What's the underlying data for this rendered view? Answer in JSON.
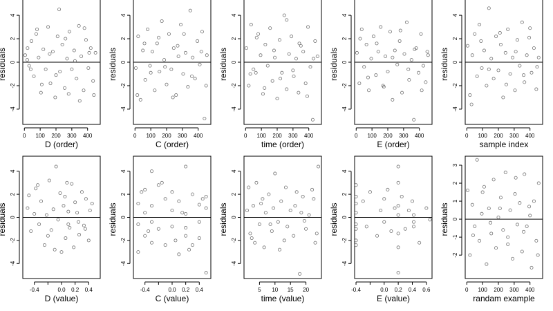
{
  "figure": {
    "panels": [
      {
        "id": "d-order",
        "xlabel": "D (order)",
        "ylabel": "residuals"
      },
      {
        "id": "c-order",
        "xlabel": "C (order)",
        "ylabel": "residuals"
      },
      {
        "id": "time-order",
        "xlabel": "time (order)",
        "ylabel": "residuals"
      },
      {
        "id": "e-order",
        "xlabel": "E (order)",
        "ylabel": "residuals"
      },
      {
        "id": "sample-index",
        "xlabel": "sample index",
        "ylabel": "residuals"
      },
      {
        "id": "d-value",
        "xlabel": "D (value)",
        "ylabel": "residuals"
      },
      {
        "id": "c-value",
        "xlabel": "C (value)",
        "ylabel": "residuals"
      },
      {
        "id": "time-value",
        "xlabel": "time (value)",
        "ylabel": "residuals"
      },
      {
        "id": "e-value",
        "xlabel": "E (value)",
        "ylabel": "residuals"
      },
      {
        "id": "random-example",
        "xlabel": "randam example",
        "ylabel": "residuals"
      }
    ]
  },
  "chart_data": [
    {
      "type": "scatter",
      "xlabel": "D (order)",
      "ylabel": "residuals",
      "xlim": [
        -10,
        480
      ],
      "ylim": [
        -5.3,
        5.3
      ],
      "xticks": [
        0,
        100,
        200,
        300,
        400
      ],
      "xtick_labels": [
        "0",
        "100",
        "200",
        "300",
        "400"
      ],
      "yticks": [
        -4,
        -2,
        0,
        2,
        4
      ],
      "ytick_labels": [
        "-4",
        "-2",
        "0",
        "2",
        "4"
      ],
      "hline": 0,
      "marker": "open-circle",
      "grid": false,
      "x": [
        5,
        18,
        30,
        45,
        60,
        75,
        90,
        105,
        120,
        135,
        150,
        165,
        180,
        195,
        210,
        225,
        240,
        255,
        270,
        285,
        300,
        315,
        330,
        345,
        360,
        375,
        390,
        405,
        420,
        435,
        450,
        20,
        40,
        80,
        110,
        160,
        200,
        220,
        260,
        280,
        320,
        350,
        380,
        410,
        440
      ],
      "y": [
        0.6,
        0.2,
        -0.3,
        1.8,
        -1.2,
        2.4,
        0.4,
        -2.6,
        1.1,
        -0.6,
        3.0,
        -1.8,
        0.9,
        -3.0,
        2.2,
        -0.8,
        1.5,
        -2.2,
        0.3,
        2.6,
        -0.6,
        1.0,
        -1.4,
        3.1,
        0.5,
        -2.4,
        1.9,
        -0.5,
        1.2,
        -1.6,
        0.8,
        1.2,
        -0.6,
        2.8,
        -1.9,
        0.7,
        -1.1,
        4.5,
        2.0,
        -2.7,
        0.1,
        -3.3,
        2.9,
        0.8,
        -2.8
      ]
    },
    {
      "type": "scatter",
      "xlabel": "C (order)",
      "ylabel": "residuals",
      "xlim": [
        -10,
        480
      ],
      "ylim": [
        -5.3,
        5.3
      ],
      "xticks": [
        0,
        100,
        200,
        300,
        400
      ],
      "xtick_labels": [
        "0",
        "100",
        "200",
        "300",
        "400"
      ],
      "yticks": [
        -4,
        -2,
        0,
        2,
        4
      ],
      "ytick_labels": [
        "-4",
        "-2",
        "0",
        "2",
        "4"
      ],
      "hline": 0,
      "marker": "open-circle",
      "grid": false,
      "x": [
        5,
        20,
        35,
        50,
        65,
        80,
        95,
        110,
        125,
        140,
        155,
        170,
        185,
        200,
        215,
        230,
        245,
        260,
        275,
        290,
        305,
        320,
        335,
        350,
        365,
        380,
        395,
        410,
        425,
        440,
        455,
        15,
        60,
        100,
        150,
        190,
        240,
        270,
        310,
        360,
        420,
        450
      ],
      "y": [
        -0.5,
        2.2,
        -3.2,
        1.0,
        -1.5,
        2.8,
        -0.3,
        0.9,
        -2.4,
        1.6,
        -0.8,
        3.5,
        0.2,
        -1.9,
        2.4,
        -0.6,
        1.2,
        -2.8,
        0.5,
        3.2,
        -1.0,
        0.8,
        -2.1,
        4.4,
        0.4,
        -1.4,
        1.8,
        -0.2,
        2.6,
        -4.8,
        0.6,
        -2.8,
        1.6,
        -0.9,
        2.1,
        -0.4,
        -3.0,
        1.4,
        2.4,
        -1.2,
        0.9,
        -2.0
      ]
    },
    {
      "type": "scatter",
      "xlabel": "time (order)",
      "ylabel": "residuals",
      "xlim": [
        -10,
        480
      ],
      "ylim": [
        -5.3,
        5.3
      ],
      "xticks": [
        0,
        100,
        200,
        300,
        400
      ],
      "xtick_labels": [
        "0",
        "100",
        "200",
        "300",
        "400"
      ],
      "yticks": [
        -4,
        -2,
        0,
        2,
        4
      ],
      "ytick_labels": [
        "-4",
        "-2",
        "0",
        "2",
        "4"
      ],
      "hline": 0,
      "marker": "open-circle",
      "grid": false,
      "x": [
        5,
        20,
        35,
        50,
        65,
        80,
        95,
        110,
        125,
        140,
        155,
        170,
        185,
        200,
        215,
        230,
        245,
        260,
        275,
        290,
        305,
        320,
        335,
        350,
        365,
        380,
        395,
        410,
        425,
        440,
        455,
        30,
        70,
        120,
        180,
        220,
        260,
        300,
        340,
        390,
        430
      ],
      "y": [
        1.2,
        -2.0,
        3.2,
        -0.6,
        -0.9,
        2.4,
        0.6,
        -2.7,
        1.5,
        -0.3,
        2.9,
        -1.6,
        0.4,
        -3.1,
        1.9,
        -0.9,
        4.0,
        -2.3,
        0.7,
        2.2,
        -1.2,
        0.3,
        -2.6,
        1.4,
        0.9,
        -1.8,
        3.0,
        -0.4,
        -4.9,
        1.8,
        0.5,
        -1.0,
        2.1,
        -2.2,
        1.0,
        -1.4,
        3.6,
        -0.7,
        1.6,
        -2.9,
        0.3
      ]
    },
    {
      "type": "scatter",
      "xlabel": "E (order)",
      "ylabel": "residuals",
      "xlim": [
        -10,
        480
      ],
      "ylim": [
        -5.3,
        5.3
      ],
      "xticks": [
        0,
        100,
        200,
        300,
        400
      ],
      "xtick_labels": [
        "0",
        "100",
        "200",
        "300",
        "400"
      ],
      "yticks": [
        -4,
        -2,
        0,
        2,
        4
      ],
      "ytick_labels": [
        "-4",
        "-2",
        "0",
        "2",
        "4"
      ],
      "hline": 0,
      "marker": "open-circle",
      "grid": false,
      "x": [
        5,
        20,
        35,
        50,
        65,
        80,
        95,
        110,
        125,
        140,
        155,
        170,
        185,
        200,
        215,
        230,
        245,
        260,
        275,
        290,
        305,
        320,
        335,
        350,
        365,
        380,
        395,
        410,
        425,
        440,
        455,
        25,
        75,
        130,
        175,
        230,
        280,
        330,
        370,
        415,
        450
      ],
      "y": [
        0.8,
        -1.8,
        2.8,
        -0.4,
        1.5,
        -2.4,
        0.3,
        2.2,
        -1.1,
        0.9,
        3.0,
        -2.0,
        0.5,
        -0.8,
        2.6,
        -3.2,
        1.0,
        -0.2,
        1.8,
        -2.6,
        0.7,
        3.4,
        -1.5,
        0.2,
        -4.9,
        1.2,
        -0.9,
        2.4,
        -0.3,
        -1.7,
        0.6,
        2.0,
        -1.3,
        1.6,
        -2.1,
        0.4,
        2.7,
        -0.6,
        1.1,
        -2.4,
        0.9
      ]
    },
    {
      "type": "scatter",
      "xlabel": "sample index",
      "ylabel": "residuals",
      "xlim": [
        -10,
        480
      ],
      "ylim": [
        -5.3,
        5.3
      ],
      "xticks": [
        0,
        100,
        200,
        300,
        400
      ],
      "xtick_labels": [
        "0",
        "100",
        "200",
        "300",
        "400"
      ],
      "yticks": [
        -4,
        -2,
        0,
        2,
        4
      ],
      "ytick_labels": [
        "-4",
        "-2",
        "0",
        "2",
        "4"
      ],
      "hline": 0,
      "marker": "open-circle",
      "grid": false,
      "x": [
        5,
        20,
        35,
        50,
        65,
        80,
        95,
        110,
        125,
        140,
        155,
        170,
        185,
        200,
        215,
        230,
        245,
        260,
        275,
        290,
        305,
        320,
        335,
        350,
        365,
        380,
        395,
        410,
        425,
        440,
        455,
        30,
        90,
        140,
        210,
        250,
        310,
        360,
        400,
        445
      ],
      "y": [
        1.4,
        -2.8,
        0.6,
        2.4,
        -1.2,
        3.2,
        -0.5,
        1.0,
        -2.0,
        4.6,
        0.3,
        -1.4,
        2.2,
        -0.7,
        1.5,
        -3.0,
        0.8,
        2.8,
        -1.0,
        0.4,
        -2.4,
        1.9,
        -0.3,
        3.4,
        -1.7,
        0.6,
        2.1,
        -0.9,
        1.2,
        -2.3,
        0.4,
        -3.6,
        1.8,
        -0.6,
        2.5,
        -1.9,
        0.9,
        -1.1,
        2.9,
        -0.4
      ]
    },
    {
      "type": "scatter",
      "xlabel": "D (value)",
      "ylabel": "residuals",
      "xlim": [
        -0.57,
        0.57
      ],
      "ylim": [
        -5.3,
        5.3
      ],
      "xticks": [
        -0.4,
        -0.2,
        0.0,
        0.2,
        0.4
      ],
      "xtick_labels": [
        "-0.4",
        "",
        "0.0",
        "0.2",
        "0.4"
      ],
      "yticks": [
        -4,
        -2,
        0,
        2,
        4
      ],
      "ytick_labels": [
        "-4",
        "-2",
        "0",
        "2",
        "4"
      ],
      "hline": 0,
      "marker": "open-circle",
      "grid": false,
      "x": [
        -0.5,
        -0.48,
        -0.45,
        -0.4,
        -0.38,
        -0.33,
        -0.3,
        -0.25,
        -0.22,
        -0.18,
        -0.15,
        -0.12,
        -0.08,
        -0.05,
        -0.02,
        0.0,
        0.03,
        0.06,
        0.1,
        0.12,
        0.15,
        0.18,
        0.2,
        0.23,
        0.26,
        0.3,
        0.33,
        0.36,
        0.4,
        0.42,
        0.45,
        -0.2,
        -0.1,
        0.05,
        0.08,
        0.25,
        0.35,
        -0.35,
        0.1
      ],
      "y": [
        0.8,
        1.9,
        -1.2,
        0.3,
        2.5,
        -0.6,
        1.4,
        -2.4,
        0.2,
        3.2,
        -1.1,
        0.7,
        4.4,
        -0.2,
        2.1,
        -3.0,
        1.0,
        -1.8,
        0.5,
        -0.9,
        2.9,
        -2.6,
        1.3,
        0.4,
        -1.5,
        2.2,
        -0.7,
        1.6,
        -2.0,
        0.6,
        1.2,
        -1.6,
        -2.8,
        1.8,
        3.0,
        -0.4,
        -1.0,
        2.8,
        -0.6
      ]
    },
    {
      "type": "scatter",
      "xlabel": "C (value)",
      "ylabel": "residuals",
      "xlim": [
        -0.57,
        0.57
      ],
      "ylim": [
        -5.3,
        5.3
      ],
      "xticks": [
        -0.4,
        -0.2,
        0.0,
        0.2,
        0.4
      ],
      "xtick_labels": [
        "-0.4",
        "",
        "0.0",
        "0.2",
        "0.4"
      ],
      "yticks": [
        -4,
        -2,
        0,
        2,
        4
      ],
      "ytick_labels": [
        "-4",
        "-2",
        "0",
        "2",
        "4"
      ],
      "hline": 0,
      "marker": "open-circle",
      "grid": false,
      "x": [
        -0.5,
        -0.5,
        -0.5,
        -0.4,
        -0.4,
        -0.4,
        -0.3,
        -0.3,
        -0.3,
        -0.3,
        -0.2,
        -0.2,
        -0.1,
        -0.1,
        0.0,
        0.0,
        0.0,
        0.1,
        0.1,
        0.2,
        0.2,
        0.2,
        0.2,
        0.3,
        0.3,
        0.4,
        0.4,
        0.4,
        0.5,
        0.5,
        0.5,
        -0.45,
        -0.35,
        -0.15,
        0.05,
        0.15,
        0.25,
        0.45
      ],
      "y": [
        -3.0,
        1.2,
        -0.6,
        2.4,
        -1.6,
        0.4,
        4.0,
        -2.2,
        1.0,
        -0.4,
        2.8,
        -1.0,
        1.6,
        -2.4,
        0.6,
        -0.8,
        2.2,
        -3.2,
        1.4,
        4.4,
        -1.6,
        0.3,
        -0.9,
        2.0,
        -2.4,
        1.1,
        -0.4,
        -1.8,
        0.8,
        -4.8,
        1.8,
        2.2,
        -1.2,
        3.0,
        -2.0,
        0.4,
        -2.8,
        1.6
      ]
    },
    {
      "type": "scatter",
      "xlabel": "time (value)",
      "ylabel": "residuals",
      "xlim": [
        0,
        25
      ],
      "ylim": [
        -5.3,
        5.3
      ],
      "xticks": [
        5,
        10,
        15,
        20
      ],
      "xtick_labels": [
        "5",
        "10",
        "15",
        "20"
      ],
      "yticks": [
        -4,
        -2,
        0,
        2,
        4
      ],
      "ytick_labels": [
        "-4",
        "-2",
        "0",
        "2",
        "4"
      ],
      "hline": 0,
      "marker": "open-circle",
      "grid": false,
      "x": [
        1,
        1.5,
        2,
        3,
        3.5,
        4,
        5,
        6,
        6.5,
        7,
        8,
        9,
        9.5,
        10,
        11,
        12,
        13,
        13.5,
        14,
        15,
        16,
        17,
        18,
        18.5,
        19,
        20,
        21,
        22,
        23,
        24,
        2.5,
        5.5,
        8.5,
        11.5,
        16.5,
        19.5,
        22.5,
        23.5
      ],
      "y": [
        0.6,
        2.6,
        -1.4,
        1.0,
        -2.2,
        3.0,
        -0.6,
        1.6,
        -2.6,
        0.4,
        2.0,
        -1.2,
        0.8,
        3.8,
        -0.4,
        1.4,
        -2.0,
        2.6,
        -0.8,
        0.6,
        -1.6,
        2.2,
        -4.9,
        0.4,
        1.8,
        -1.0,
        0.2,
        2.4,
        -2.2,
        4.4,
        -1.8,
        1.2,
        -0.6,
        -2.8,
        1.0,
        -0.3,
        1.6,
        -1.4
      ]
    },
    {
      "type": "scatter",
      "xlabel": "E (value)",
      "ylabel": "residuals",
      "xlim": [
        -0.42,
        0.68
      ],
      "ylim": [
        -5.3,
        5.3
      ],
      "xticks": [
        -0.4,
        -0.2,
        0.0,
        0.2,
        0.4,
        0.6
      ],
      "xtick_labels": [
        "-0.4",
        "",
        "0.0",
        "0.2",
        "0.4",
        "0.6"
      ],
      "yticks": [
        -4,
        -2,
        0,
        2,
        4
      ],
      "ytick_labels": [
        "-4",
        "-2",
        "0",
        "2",
        "4"
      ],
      "hline": 0,
      "marker": "open-circle",
      "grid": false,
      "x": [
        -0.4,
        -0.4,
        -0.4,
        -0.4,
        -0.4,
        -0.4,
        -0.4,
        -0.4,
        -0.3,
        -0.25,
        -0.2,
        -0.1,
        -0.05,
        0.0,
        0.0,
        0.05,
        0.1,
        0.15,
        0.2,
        0.2,
        0.2,
        0.2,
        0.2,
        0.2,
        0.2,
        0.25,
        0.3,
        0.35,
        0.4,
        0.42,
        0.42,
        0.42,
        0.5,
        0.6,
        0.65
      ],
      "y": [
        2.8,
        -2.4,
        1.2,
        -1.0,
        0.4,
        -0.6,
        1.8,
        -2.0,
        1.4,
        -0.8,
        2.2,
        -1.6,
        0.6,
        1.6,
        -0.4,
        2.4,
        -1.2,
        0.8,
        4.4,
        -4.8,
        3.0,
        -2.6,
        1.0,
        -1.4,
        0.2,
        1.8,
        -1.0,
        0.6,
        1.4,
        -0.4,
        -0.8,
        0.2,
        -2.2,
        0.8,
        -0.2
      ]
    },
    {
      "type": "scatter",
      "xlabel": "randam example",
      "ylabel": "residuals",
      "xlim": [
        -10,
        480
      ],
      "ylim": [
        -3.3,
        3.5
      ],
      "xticks": [
        0,
        100,
        200,
        300,
        400
      ],
      "xtick_labels": [
        "0",
        "100",
        "200",
        "300",
        "400"
      ],
      "yticks": [
        -2,
        -1,
        0,
        1,
        2,
        3
      ],
      "ytick_labels": [
        "-2",
        "-1",
        "0",
        "1",
        "2",
        "3"
      ],
      "hline": 0,
      "marker": "open-circle",
      "grid": false,
      "x": [
        5,
        20,
        35,
        50,
        65,
        80,
        95,
        110,
        125,
        140,
        155,
        170,
        185,
        200,
        215,
        230,
        245,
        260,
        275,
        290,
        305,
        320,
        335,
        350,
        365,
        380,
        395,
        410,
        425,
        440,
        455,
        40,
        100,
        150,
        210,
        260,
        310,
        360,
        400,
        450
      ],
      "y": [
        1.6,
        -2.0,
        0.8,
        -0.4,
        3.3,
        -1.2,
        0.3,
        1.8,
        -2.5,
        0.6,
        -0.8,
        2.2,
        -1.6,
        0.1,
        1.2,
        -0.6,
        2.6,
        -1.0,
        0.5,
        -2.2,
        1.4,
        -0.3,
        0.9,
        -1.8,
        2.5,
        -0.4,
        0.7,
        -2.7,
        1.0,
        -1.2,
        2.0,
        -0.9,
        1.5,
        -0.2,
        0.6,
        -1.4,
        2.3,
        -0.7,
        0.2,
        -2.0
      ]
    }
  ]
}
